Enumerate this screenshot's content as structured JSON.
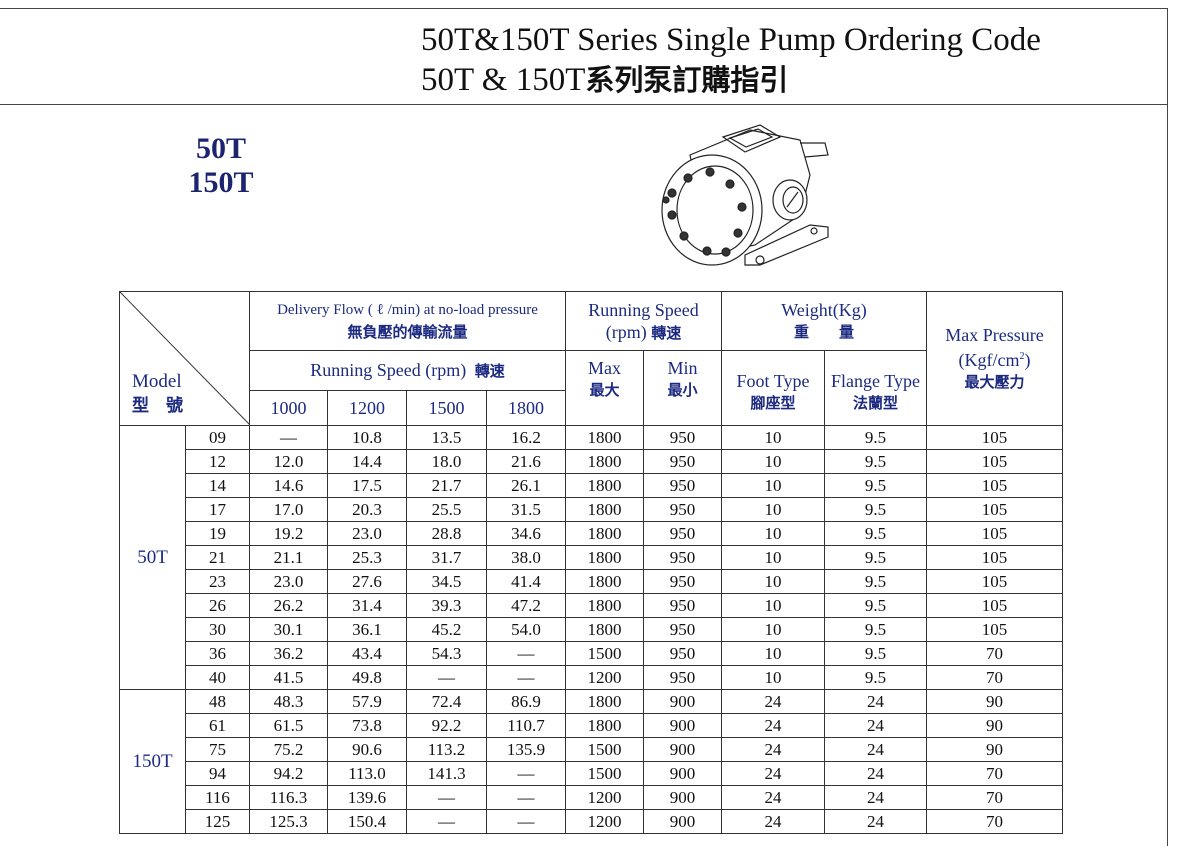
{
  "title": {
    "line1": "50T&150T Series Single Pump Ordering Code",
    "line2_en": "50T & 150T",
    "line2_cn": "系列泵訂購指引"
  },
  "models": [
    "50T",
    "150T"
  ],
  "image": {
    "icon": "gear-pump-drawing"
  },
  "table": {
    "model_label": "Model",
    "model_label_cn": "型　號",
    "flow_header": "Delivery Flow ( ℓ /min) at no-load pressure",
    "flow_header_cn": "無負壓的傳輸流量",
    "running_speed_sub": "Running Speed  (rpm)",
    "running_speed_sub_cn": "轉速",
    "speeds": [
      "1000",
      "1200",
      "1500",
      "1800"
    ],
    "rs_header": "Running Speed",
    "rs_header2": "(rpm)",
    "rs_header_cn": "轉速",
    "max": "Max",
    "max_cn": "最大",
    "min": "Min",
    "min_cn": "最小",
    "weight_header": "Weight(Kg)",
    "weight_header_cn": "重　　量",
    "foot": "Foot Type",
    "foot_cn": "腳座型",
    "flange": "Flange Type",
    "flange_cn": "法蘭型",
    "pressure_header": "Max Pressure",
    "pressure_unit": "(Kgf/cm",
    "pressure_sup": "2",
    "pressure_close": ")",
    "pressure_cn": "最大壓力",
    "groups": [
      {
        "name": "50T",
        "rows": [
          [
            "09",
            "—",
            "10.8",
            "13.5",
            "16.2",
            "1800",
            "950",
            "10",
            "9.5",
            "105"
          ],
          [
            "12",
            "12.0",
            "14.4",
            "18.0",
            "21.6",
            "1800",
            "950",
            "10",
            "9.5",
            "105"
          ],
          [
            "14",
            "14.6",
            "17.5",
            "21.7",
            "26.1",
            "1800",
            "950",
            "10",
            "9.5",
            "105"
          ],
          [
            "17",
            "17.0",
            "20.3",
            "25.5",
            "31.5",
            "1800",
            "950",
            "10",
            "9.5",
            "105"
          ],
          [
            "19",
            "19.2",
            "23.0",
            "28.8",
            "34.6",
            "1800",
            "950",
            "10",
            "9.5",
            "105"
          ],
          [
            "21",
            "21.1",
            "25.3",
            "31.7",
            "38.0",
            "1800",
            "950",
            "10",
            "9.5",
            "105"
          ],
          [
            "23",
            "23.0",
            "27.6",
            "34.5",
            "41.4",
            "1800",
            "950",
            "10",
            "9.5",
            "105"
          ],
          [
            "26",
            "26.2",
            "31.4",
            "39.3",
            "47.2",
            "1800",
            "950",
            "10",
            "9.5",
            "105"
          ],
          [
            "30",
            "30.1",
            "36.1",
            "45.2",
            "54.0",
            "1800",
            "950",
            "10",
            "9.5",
            "105"
          ],
          [
            "36",
            "36.2",
            "43.4",
            "54.3",
            "—",
            "1500",
            "950",
            "10",
            "9.5",
            "70"
          ],
          [
            "40",
            "41.5",
            "49.8",
            "—",
            "—",
            "1200",
            "950",
            "10",
            "9.5",
            "70"
          ]
        ]
      },
      {
        "name": "150T",
        "rows": [
          [
            "48",
            "48.3",
            "57.9",
            "72.4",
            "86.9",
            "1800",
            "900",
            "24",
            "24",
            "90"
          ],
          [
            "61",
            "61.5",
            "73.8",
            "92.2",
            "110.7",
            "1800",
            "900",
            "24",
            "24",
            "90"
          ],
          [
            "75",
            "75.2",
            "90.6",
            "113.2",
            "135.9",
            "1500",
            "900",
            "24",
            "24",
            "90"
          ],
          [
            "94",
            "94.2",
            "113.0",
            "141.3",
            "—",
            "1500",
            "900",
            "24",
            "24",
            "70"
          ],
          [
            "116",
            "116.3",
            "139.6",
            "—",
            "—",
            "1200",
            "900",
            "24",
            "24",
            "70"
          ],
          [
            "125",
            "125.3",
            "150.4",
            "—",
            "—",
            "1200",
            "900",
            "24",
            "24",
            "70"
          ]
        ]
      }
    ]
  }
}
